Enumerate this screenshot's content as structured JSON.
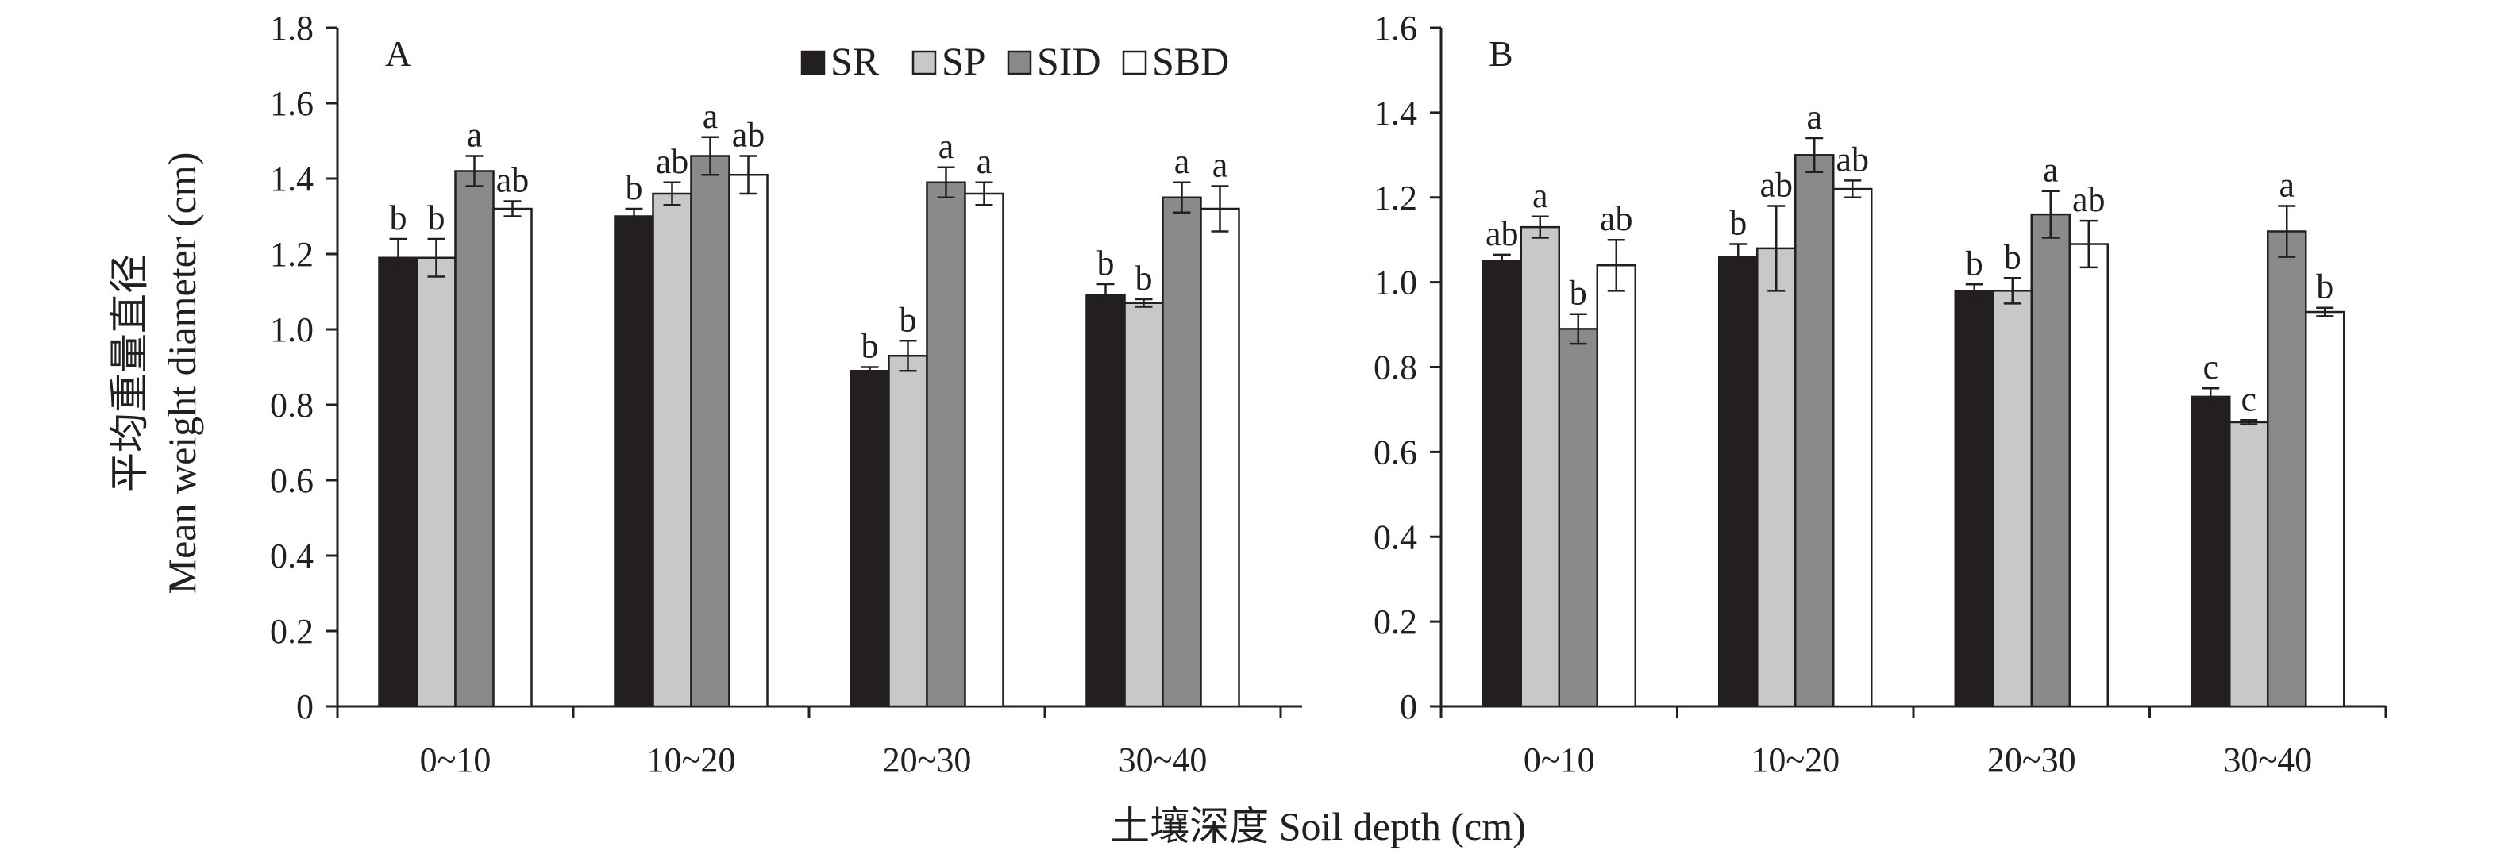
{
  "figure": {
    "ylabel_cn": "平均重量直径",
    "ylabel_en": "Mean weight diameter (cm)",
    "xlabel": "土壤深度 Soil depth (cm)"
  },
  "legend": [
    {
      "name": "SR",
      "color": "#231f20"
    },
    {
      "name": "SP",
      "color": "#c8c8c8"
    },
    {
      "name": "SID",
      "color": "#8a8a8a"
    },
    {
      "name": "SBD",
      "color": "#ffffff"
    }
  ],
  "chart_data": [
    {
      "type": "bar",
      "panel": "A",
      "categories": [
        "0~10",
        "10~20",
        "20~30",
        "30~40"
      ],
      "ylim": [
        0,
        1.8
      ],
      "yticks": [
        "0",
        "0.2",
        "0.4",
        "0.6",
        "0.8",
        "1.0",
        "1.2",
        "1.4",
        "1.6",
        "1.8"
      ],
      "legend_position": "top-right",
      "grid": false,
      "series": [
        {
          "name": "SR",
          "values": [
            1.19,
            1.3,
            0.89,
            1.09
          ],
          "errors": [
            0.05,
            0.02,
            0.01,
            0.03
          ],
          "labels": [
            "b",
            "b",
            "b",
            "b"
          ]
        },
        {
          "name": "SP",
          "values": [
            1.19,
            1.36,
            0.93,
            1.07
          ],
          "errors": [
            0.05,
            0.03,
            0.04,
            0.01
          ],
          "labels": [
            "b",
            "ab",
            "b",
            "b"
          ]
        },
        {
          "name": "SID",
          "values": [
            1.42,
            1.46,
            1.39,
            1.35
          ],
          "errors": [
            0.04,
            0.05,
            0.04,
            0.04
          ],
          "labels": [
            "a",
            "a",
            "a",
            "a"
          ]
        },
        {
          "name": "SBD",
          "values": [
            1.32,
            1.41,
            1.36,
            1.32
          ],
          "errors": [
            0.02,
            0.05,
            0.03,
            0.06
          ],
          "labels": [
            "ab",
            "ab",
            "a",
            "a"
          ]
        }
      ]
    },
    {
      "type": "bar",
      "panel": "B",
      "categories": [
        "0~10",
        "10~20",
        "20~30",
        "30~40"
      ],
      "ylim": [
        0,
        1.6
      ],
      "yticks": [
        "0",
        "0.2",
        "0.4",
        "0.6",
        "0.8",
        "1.0",
        "1.2",
        "1.4",
        "1.6"
      ],
      "grid": false,
      "series": [
        {
          "name": "SR",
          "values": [
            1.05,
            1.06,
            0.98,
            0.73
          ],
          "errors": [
            0.015,
            0.03,
            0.015,
            0.02
          ],
          "labels": [
            "ab",
            "b",
            "b",
            "c"
          ]
        },
        {
          "name": "SP",
          "values": [
            1.13,
            1.08,
            0.98,
            0.67
          ],
          "errors": [
            0.025,
            0.1,
            0.03,
            0.005
          ],
          "labels": [
            "a",
            "ab",
            "b",
            "c"
          ]
        },
        {
          "name": "SID",
          "values": [
            0.89,
            1.3,
            1.16,
            1.12
          ],
          "errors": [
            0.035,
            0.04,
            0.055,
            0.06
          ],
          "labels": [
            "b",
            "a",
            "a",
            "a"
          ]
        },
        {
          "name": "SBD",
          "values": [
            1.04,
            1.22,
            1.09,
            0.93
          ],
          "errors": [
            0.06,
            0.02,
            0.055,
            0.01
          ],
          "labels": [
            "ab",
            "ab",
            "ab",
            "b"
          ]
        }
      ]
    }
  ]
}
